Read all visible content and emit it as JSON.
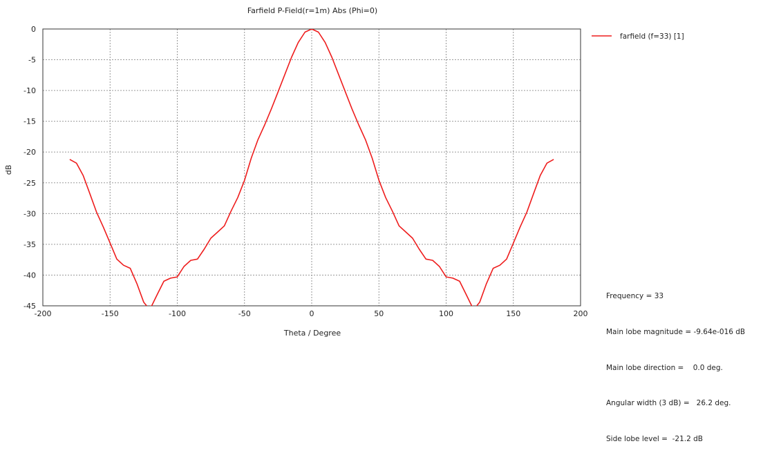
{
  "chart_data": {
    "type": "line",
    "title": "Farfield P-Field(r=1m) Abs (Phi=0)",
    "xlabel": "Theta / Degree",
    "ylabel": "dB",
    "xlim": [
      -200,
      200
    ],
    "ylim": [
      -45,
      0
    ],
    "xticks": [
      -200,
      -150,
      -100,
      -50,
      0,
      50,
      100,
      150,
      200
    ],
    "yticks": [
      0,
      -5,
      -10,
      -15,
      -20,
      -25,
      -30,
      -35,
      -40,
      -45
    ],
    "grid": true,
    "legend_position": "top-right",
    "series": [
      {
        "name": "farfield (f=33) [1]",
        "color": "#ee1c1c",
        "x": [
          -180,
          -175,
          -170,
          -165,
          -160,
          -155,
          -150,
          -145,
          -140,
          -135,
          -130,
          -125,
          -122,
          -119,
          -115,
          -110,
          -105,
          -100,
          -95,
          -90,
          -85,
          -80,
          -75,
          -70,
          -65,
          -60,
          -55,
          -50,
          -45,
          -40,
          -35,
          -30,
          -25,
          -20,
          -15,
          -10,
          -5,
          0,
          5,
          10,
          15,
          20,
          25,
          30,
          35,
          40,
          45,
          50,
          55,
          60,
          65,
          70,
          75,
          80,
          85,
          90,
          95,
          100,
          105,
          110,
          115,
          119,
          122,
          125,
          130,
          135,
          140,
          145,
          150,
          155,
          160,
          165,
          170,
          175,
          180
        ],
        "y": [
          -21.2,
          -21.8,
          -23.8,
          -26.8,
          -29.8,
          -32.2,
          -34.8,
          -37.4,
          -38.4,
          -38.9,
          -41.4,
          -44.4,
          -45.2,
          -45.0,
          -43.2,
          -41.0,
          -40.5,
          -40.3,
          -38.6,
          -37.6,
          -37.4,
          -35.8,
          -34.0,
          -33.0,
          -32.0,
          -29.6,
          -27.4,
          -24.6,
          -21.0,
          -18.0,
          -15.6,
          -13.0,
          -10.2,
          -7.4,
          -4.6,
          -2.2,
          -0.5,
          0.0,
          -0.5,
          -2.2,
          -4.6,
          -7.4,
          -10.2,
          -13.0,
          -15.6,
          -18.0,
          -21.0,
          -24.6,
          -27.4,
          -29.6,
          -32.0,
          -33.0,
          -34.0,
          -35.8,
          -37.4,
          -37.6,
          -38.6,
          -40.3,
          -40.5,
          -41.0,
          -43.2,
          -45.0,
          -45.2,
          -44.4,
          -41.4,
          -38.9,
          -38.4,
          -37.4,
          -34.8,
          -32.2,
          -29.8,
          -26.8,
          -23.8,
          -21.8,
          -21.2
        ]
      }
    ],
    "annotations": [
      "Frequency = 33",
      "Main lobe magnitude = -9.64e-016 dB",
      "Main lobe direction =    0.0 deg.",
      "Angular width (3 dB) =   26.2 deg.",
      "Side lobe level =  -21.2 dB"
    ]
  }
}
